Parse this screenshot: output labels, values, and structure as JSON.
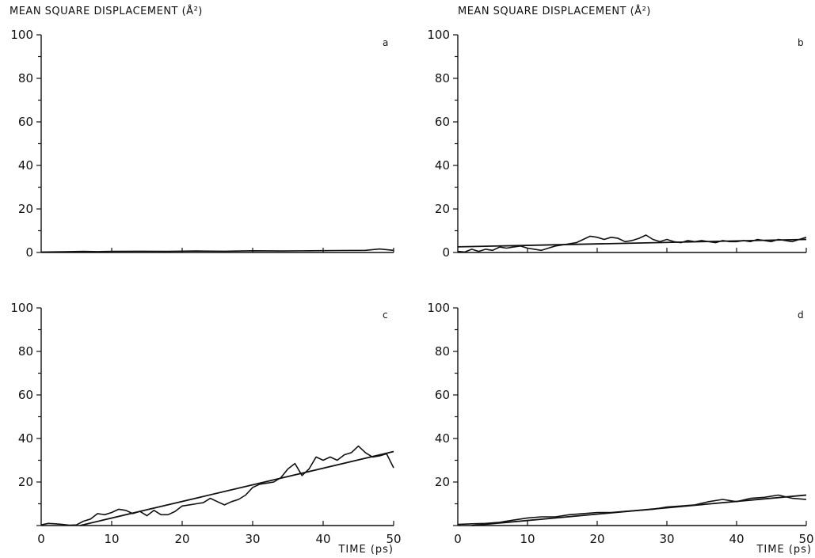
{
  "chart_data": [
    {
      "type": "line",
      "panel": "a",
      "ylabel": "MEAN SQUARE DISPLACEMENT (Å²)",
      "xlabel": "",
      "xlim": [
        0,
        50
      ],
      "ylim": [
        0,
        100
      ],
      "x_ticks": [],
      "y_ticks": [
        "0",
        "20",
        "40",
        "60",
        "80",
        "100"
      ],
      "series": [
        {
          "role": "trace",
          "x": [
            0,
            2,
            4,
            6,
            8,
            10,
            14,
            18,
            22,
            26,
            30,
            34,
            38,
            42,
            46,
            48,
            50
          ],
          "y": [
            0.2,
            0.3,
            0.4,
            0.5,
            0.4,
            0.5,
            0.6,
            0.5,
            0.7,
            0.6,
            0.8,
            0.7,
            0.8,
            0.9,
            1.0,
            1.6,
            1.0
          ]
        }
      ]
    },
    {
      "type": "line",
      "panel": "b",
      "ylabel": "MEAN SQUARE DISPLACEMENT (Å²)",
      "xlabel": "",
      "xlim": [
        0,
        50
      ],
      "ylim": [
        0,
        100
      ],
      "x_ticks": [],
      "y_ticks": [
        "0",
        "20",
        "40",
        "60",
        "80",
        "100"
      ],
      "series": [
        {
          "role": "fit",
          "x": [
            0,
            50
          ],
          "y": [
            2.6,
            6.0
          ]
        },
        {
          "role": "trace",
          "x": [
            0,
            1,
            2,
            3,
            4,
            5,
            6,
            7,
            8,
            9,
            10,
            11,
            12,
            13,
            14,
            15,
            16,
            17,
            18,
            19,
            20,
            21,
            22,
            23,
            24,
            25,
            26,
            27,
            28,
            29,
            30,
            31,
            32,
            33,
            34,
            35,
            36,
            37,
            38,
            39,
            40,
            41,
            42,
            43,
            44,
            45,
            46,
            47,
            48,
            49,
            50
          ],
          "y": [
            0.5,
            0.2,
            1.5,
            0.5,
            1.5,
            1.0,
            2.5,
            2.0,
            2.5,
            3.0,
            2.0,
            1.5,
            1.0,
            2.0,
            3.0,
            3.5,
            4.0,
            4.5,
            6.0,
            7.5,
            7.0,
            6.0,
            7.0,
            6.5,
            5.0,
            5.5,
            6.5,
            8.0,
            6.0,
            5.0,
            6.0,
            5.0,
            4.5,
            5.5,
            5.0,
            5.5,
            5.0,
            4.5,
            5.5,
            5.0,
            5.0,
            5.5,
            5.0,
            6.0,
            5.5,
            5.0,
            6.0,
            5.5,
            5.0,
            6.0,
            7.0
          ]
        }
      ]
    },
    {
      "type": "line",
      "panel": "c",
      "ylabel": "",
      "xlabel": "TIME (ps)",
      "xlim": [
        0,
        50
      ],
      "ylim": [
        0,
        100
      ],
      "x_ticks": [
        "0",
        "10",
        "20",
        "30",
        "40",
        "50"
      ],
      "y_ticks": [
        "20",
        "40",
        "60",
        "80",
        "100"
      ],
      "series": [
        {
          "role": "fit",
          "x": [
            5.5,
            50
          ],
          "y": [
            0,
            34
          ]
        },
        {
          "role": "trace",
          "x": [
            0,
            1,
            2,
            3,
            4,
            5,
            6,
            7,
            8,
            9,
            10,
            11,
            12,
            13,
            14,
            15,
            16,
            17,
            18,
            19,
            20,
            21,
            22,
            23,
            24,
            25,
            26,
            27,
            28,
            29,
            30,
            31,
            32,
            33,
            34,
            35,
            36,
            37,
            38,
            39,
            40,
            41,
            42,
            43,
            44,
            45,
            46,
            47,
            48,
            49,
            50
          ],
          "y": [
            0.3,
            1.0,
            0.8,
            0.5,
            0.2,
            0.3,
            2.0,
            3.0,
            5.5,
            5.0,
            6.0,
            7.5,
            7.0,
            5.5,
            6.5,
            4.5,
            7.0,
            5.0,
            5.0,
            6.5,
            9.0,
            9.5,
            10.0,
            10.5,
            12.5,
            11.0,
            9.5,
            11.0,
            12.0,
            14.0,
            17.5,
            19.0,
            19.5,
            20.0,
            22.0,
            26.0,
            28.5,
            23.0,
            26.0,
            31.5,
            30.0,
            31.5,
            30.0,
            32.5,
            33.5,
            36.5,
            33.5,
            31.5,
            32.0,
            33.0,
            26.5
          ]
        }
      ]
    },
    {
      "type": "line",
      "panel": "d",
      "ylabel": "",
      "xlabel": "TIME (ps)",
      "xlim": [
        0,
        50
      ],
      "ylim": [
        0,
        100
      ],
      "x_ticks": [
        "0",
        "10",
        "20",
        "30",
        "40",
        "50"
      ],
      "y_ticks": [
        "20",
        "40",
        "60",
        "80",
        "100"
      ],
      "series": [
        {
          "role": "fit",
          "x": [
            2,
            50
          ],
          "y": [
            0,
            14
          ]
        },
        {
          "role": "trace",
          "x": [
            0,
            2,
            4,
            6,
            8,
            10,
            12,
            14,
            16,
            18,
            20,
            22,
            24,
            26,
            28,
            30,
            32,
            34,
            36,
            38,
            40,
            42,
            44,
            46,
            48,
            50
          ],
          "y": [
            0.5,
            0.8,
            1.0,
            1.5,
            2.5,
            3.5,
            4.0,
            4.0,
            5.0,
            5.5,
            6.0,
            6.0,
            6.5,
            7.0,
            7.5,
            8.5,
            9.0,
            9.5,
            11.0,
            12.0,
            11.0,
            12.5,
            13.0,
            14.0,
            12.5,
            12.0
          ]
        }
      ]
    }
  ],
  "panel_letters": [
    "a",
    "b",
    "c",
    "d"
  ]
}
